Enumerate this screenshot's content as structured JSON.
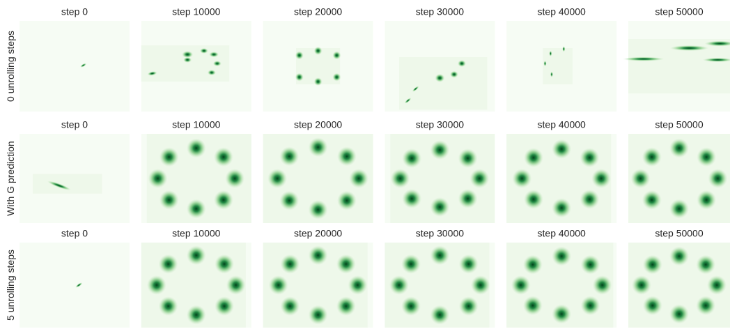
{
  "rows": [
    {
      "label": "0 unrolling steps",
      "titles": [
        "step 0",
        "step 10000",
        "step 20000",
        "step 30000",
        "step 40000",
        "step 50000"
      ]
    },
    {
      "label": "With G prediction",
      "titles": [
        "step 0",
        "step 10000",
        "step 20000",
        "step 30000",
        "step 40000",
        "step 50000"
      ]
    },
    {
      "label": "5 unrolling steps",
      "titles": [
        "step 0",
        "step 10000",
        "step 20000",
        "step 30000",
        "step 40000",
        "step 50000"
      ]
    }
  ]
}
